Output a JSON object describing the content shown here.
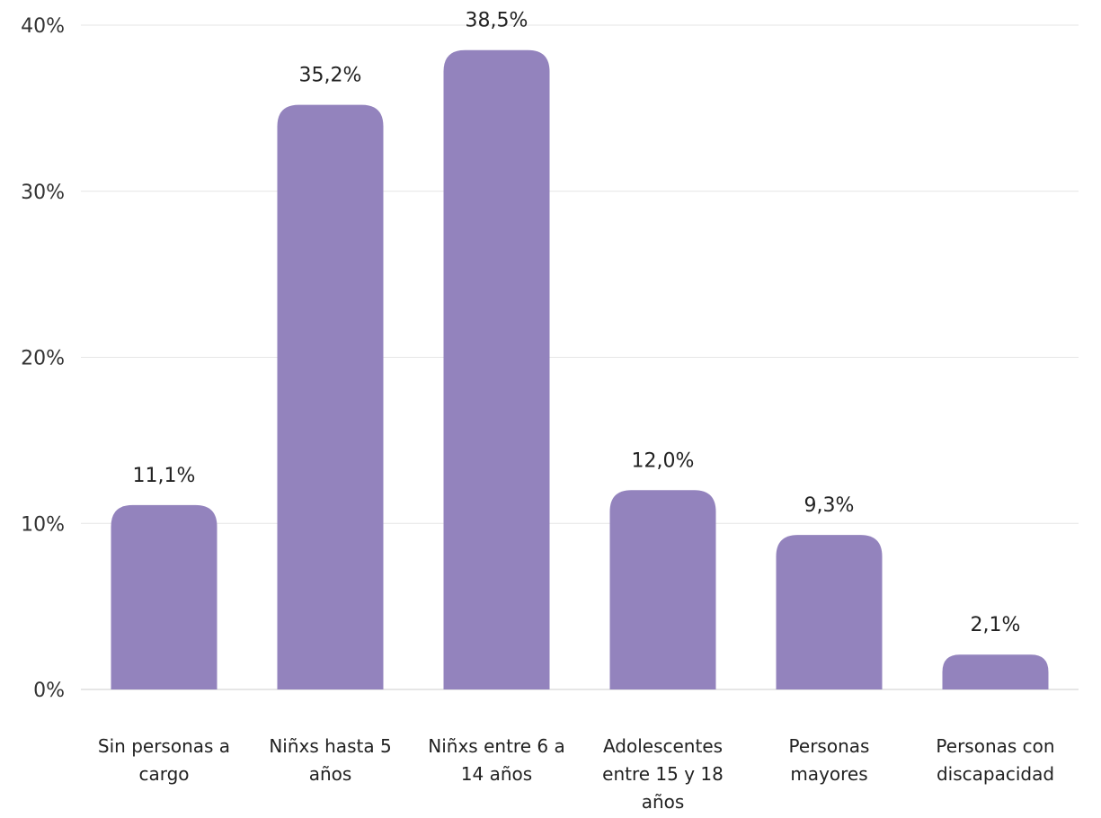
{
  "chart_data": {
    "type": "bar",
    "categories": [
      [
        "Sin personas a",
        "cargo"
      ],
      [
        "Niñxs hasta 5",
        "años"
      ],
      [
        "Niñxs entre 6 a",
        "14 años"
      ],
      [
        "Adolescentes",
        "entre 15 y 18",
        "años"
      ],
      [
        "Personas",
        "mayores"
      ],
      [
        "Personas con",
        "discapacidad"
      ]
    ],
    "values": [
      11.1,
      35.2,
      38.5,
      12.0,
      9.3,
      2.1
    ],
    "value_labels": [
      "11,1%",
      "35,2%",
      "38,5%",
      "12,0%",
      "9,3%",
      "2,1%"
    ],
    "ylim": [
      0,
      40
    ],
    "yticks": [
      0,
      10,
      20,
      30,
      40
    ],
    "ytick_labels": [
      "0%",
      "10%",
      "20%",
      "30%",
      "40%"
    ],
    "grid": true,
    "bar_color": "#9383bd"
  }
}
